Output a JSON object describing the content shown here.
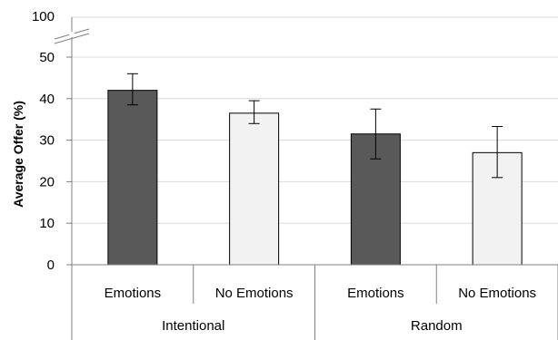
{
  "chart_data": {
    "type": "bar",
    "title": "",
    "ylabel": "Average Offer (%)",
    "xlabel": "",
    "ylim": [
      0,
      50
    ],
    "yticks": [
      0,
      10,
      20,
      30,
      40,
      50
    ],
    "axis_break": true,
    "axis_break_top_label": "100",
    "grid": true,
    "categories": [
      "Emotions",
      "No Emotions",
      "Emotions",
      "No Emotions"
    ],
    "groups": [
      "Intentional",
      "Random"
    ],
    "values": [
      42,
      36.5,
      31.5,
      27
    ],
    "error_low": [
      38.5,
      34,
      25.5,
      21
    ],
    "error_high": [
      46,
      39.5,
      37.5,
      33.3
    ],
    "bar_colors": [
      "#595959",
      "#f2f2f2",
      "#595959",
      "#f2f2f2"
    ]
  }
}
